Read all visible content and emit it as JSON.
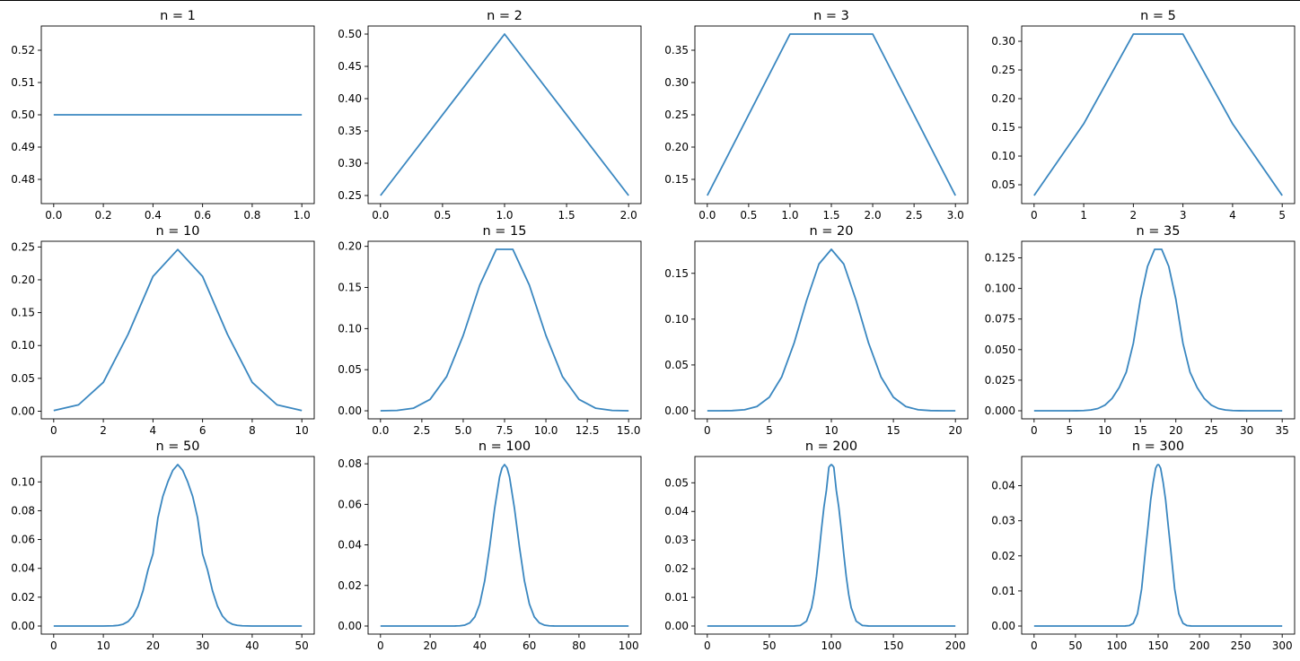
{
  "figure_title": "",
  "chart_data": [
    {
      "type": "line",
      "title": "n = 1",
      "x": [
        0,
        1
      ],
      "y": [
        0.5,
        0.5
      ],
      "xlim": [
        -0.05,
        1.05
      ],
      "ylim": [
        0.4725,
        0.5275
      ],
      "xticks": [
        0,
        0.2,
        0.4,
        0.6,
        0.8,
        1
      ],
      "xtick_labels": [
        "0.0",
        "0.2",
        "0.4",
        "0.6",
        "0.8",
        "1.0"
      ],
      "yticks": [
        0.48,
        0.49,
        0.5,
        0.51,
        0.52
      ],
      "ytick_labels": [
        "0.48",
        "0.49",
        "0.50",
        "0.51",
        "0.52"
      ]
    },
    {
      "type": "line",
      "title": "n = 2",
      "x": [
        0,
        1,
        2
      ],
      "y": [
        0.25,
        0.5,
        0.25
      ],
      "xlim": [
        -0.1,
        2.1
      ],
      "ylim": [
        0.2375,
        0.5125
      ],
      "xticks": [
        0,
        0.5,
        1,
        1.5,
        2
      ],
      "xtick_labels": [
        "0.0",
        "0.5",
        "1.0",
        "1.5",
        "2.0"
      ],
      "yticks": [
        0.25,
        0.3,
        0.35,
        0.4,
        0.45,
        0.5
      ],
      "ytick_labels": [
        "0.25",
        "0.30",
        "0.35",
        "0.40",
        "0.45",
        "0.50"
      ]
    },
    {
      "type": "line",
      "title": "n = 3",
      "x": [
        0,
        1,
        2,
        3
      ],
      "y": [
        0.125,
        0.375,
        0.375,
        0.125
      ],
      "xlim": [
        -0.15,
        3.15
      ],
      "ylim": [
        0.1125,
        0.3875
      ],
      "xticks": [
        0,
        0.5,
        1,
        1.5,
        2,
        2.5,
        3
      ],
      "xtick_labels": [
        "0.0",
        "0.5",
        "1.0",
        "1.5",
        "2.0",
        "2.5",
        "3.0"
      ],
      "yticks": [
        0.15,
        0.2,
        0.25,
        0.3,
        0.35
      ],
      "ytick_labels": [
        "0.15",
        "0.20",
        "0.25",
        "0.30",
        "0.35"
      ]
    },
    {
      "type": "line",
      "title": "n = 5",
      "x": [
        0,
        1,
        2,
        3,
        4,
        5
      ],
      "y": [
        0.03125,
        0.15625,
        0.3125,
        0.3125,
        0.15625,
        0.03125
      ],
      "xlim": [
        -0.25,
        5.25
      ],
      "ylim": [
        0.0172,
        0.3266
      ],
      "xticks": [
        0,
        1,
        2,
        3,
        4,
        5
      ],
      "xtick_labels": [
        "0",
        "1",
        "2",
        "3",
        "4",
        "5"
      ],
      "yticks": [
        0.05,
        0.1,
        0.15,
        0.2,
        0.25,
        0.3
      ],
      "ytick_labels": [
        "0.05",
        "0.10",
        "0.15",
        "0.20",
        "0.25",
        "0.30"
      ]
    },
    {
      "type": "line",
      "title": "n = 10",
      "x": [
        0,
        1,
        2,
        3,
        4,
        5,
        6,
        7,
        8,
        9,
        10
      ],
      "y": [
        0.000977,
        0.009766,
        0.043945,
        0.117188,
        0.205078,
        0.246094,
        0.205078,
        0.117188,
        0.043945,
        0.009766,
        0.000977
      ],
      "xlim": [
        -0.5,
        10.5
      ],
      "ylim": [
        -0.01158,
        0.25865
      ],
      "xticks": [
        0,
        2,
        4,
        6,
        8,
        10
      ],
      "xtick_labels": [
        "0",
        "2",
        "4",
        "6",
        "8",
        "10"
      ],
      "yticks": [
        0,
        0.05,
        0.1,
        0.15,
        0.2,
        0.25
      ],
      "ytick_labels": [
        "0.00",
        "0.05",
        "0.10",
        "0.15",
        "0.20",
        "0.25"
      ]
    },
    {
      "type": "line",
      "title": "n = 15",
      "x": [
        0,
        1,
        2,
        3,
        4,
        5,
        6,
        7,
        8,
        9,
        10,
        11,
        12,
        13,
        14,
        15
      ],
      "y": [
        3.05e-05,
        0.000458,
        0.003204,
        0.013885,
        0.041656,
        0.091644,
        0.15274,
        0.196381,
        0.196381,
        0.15274,
        0.091644,
        0.041656,
        0.013885,
        0.003204,
        0.000458,
        3.05e-05
      ],
      "xlim": [
        -0.75,
        15.75
      ],
      "ylim": [
        -0.00979,
        0.2062
      ],
      "xticks": [
        0,
        2.5,
        5,
        7.5,
        10,
        12.5,
        15
      ],
      "xtick_labels": [
        "0.0",
        "2.5",
        "5.0",
        "7.5",
        "10.0",
        "12.5",
        "15.0"
      ],
      "yticks": [
        0,
        0.05,
        0.1,
        0.15,
        0.2
      ],
      "ytick_labels": [
        "0.00",
        "0.05",
        "0.10",
        "0.15",
        "0.20"
      ]
    },
    {
      "type": "line",
      "title": "n = 20",
      "x": [
        0,
        1,
        2,
        3,
        4,
        5,
        6,
        7,
        8,
        9,
        10,
        11,
        12,
        13,
        14,
        15,
        16,
        17,
        18,
        19,
        20
      ],
      "y": [
        9.5e-07,
        1.9e-05,
        0.000181,
        0.001087,
        0.004621,
        0.014786,
        0.036964,
        0.073929,
        0.120134,
        0.160179,
        0.176197,
        0.160179,
        0.120134,
        0.073929,
        0.036964,
        0.014786,
        0.004621,
        0.001087,
        0.000181,
        1.9e-05,
        9.5e-07
      ],
      "xlim": [
        -1,
        21
      ],
      "ylim": [
        -0.00881,
        0.185
      ],
      "xticks": [
        0,
        5,
        10,
        15,
        20
      ],
      "xtick_labels": [
        "0",
        "5",
        "10",
        "15",
        "20"
      ],
      "yticks": [
        0,
        0.05,
        0.1,
        0.15
      ],
      "ytick_labels": [
        "0.00",
        "0.05",
        "0.10",
        "0.15"
      ]
    },
    {
      "type": "line",
      "title": "n = 35",
      "x": [
        0,
        1,
        2,
        3,
        4,
        5,
        6,
        7,
        8,
        9,
        10,
        11,
        12,
        13,
        14,
        15,
        16,
        17,
        18,
        19,
        20,
        21,
        22,
        23,
        24,
        25,
        26,
        27,
        28,
        29,
        30,
        31,
        32,
        33,
        34,
        35
      ],
      "y": [
        0,
        0,
        0,
        2e-07,
        1.5e-06,
        1e-05,
        5.2e-05,
        0.000194,
        0.00066,
        0.001834,
        0.004612,
        0.010063,
        0.019,
        0.031523,
        0.055134,
        0.09112,
        0.118,
        0.132,
        0.132,
        0.118,
        0.09112,
        0.055134,
        0.031523,
        0.019,
        0.010063,
        0.004612,
        0.001834,
        0.00066,
        0.000194,
        5.2e-05,
        1e-05,
        1.5e-06,
        2e-07,
        0,
        0,
        0
      ],
      "xlim": [
        -1.75,
        36.75
      ],
      "ylim": [
        -0.0066,
        0.1386
      ],
      "xticks": [
        0,
        5,
        10,
        15,
        20,
        25,
        30,
        35
      ],
      "xtick_labels": [
        "0",
        "5",
        "10",
        "15",
        "20",
        "25",
        "30",
        "35"
      ],
      "yticks": [
        0,
        0.025,
        0.05,
        0.075,
        0.1,
        0.125
      ],
      "ytick_labels": [
        "0.000",
        "0.025",
        "0.050",
        "0.075",
        "0.100",
        "0.125"
      ]
    },
    {
      "type": "line",
      "title": "n = 50",
      "x": [
        0,
        2,
        4,
        6,
        8,
        10,
        12,
        13,
        14,
        15,
        16,
        17,
        18,
        19,
        20,
        21,
        22,
        23,
        24,
        25,
        26,
        27,
        28,
        29,
        30,
        31,
        32,
        33,
        34,
        35,
        36,
        37,
        38,
        40,
        42,
        44,
        46,
        48,
        50
      ],
      "y": [
        0,
        0,
        0,
        0,
        2e-07,
        9e-06,
        0.000153,
        0.000468,
        0.001275,
        0.003148,
        0.00696,
        0.013793,
        0.024461,
        0.038897,
        0.05,
        0.075,
        0.09,
        0.1,
        0.108,
        0.112,
        0.108,
        0.1,
        0.09,
        0.075,
        0.05,
        0.038897,
        0.024461,
        0.013793,
        0.00696,
        0.003148,
        0.001275,
        0.000468,
        0.000153,
        9e-06,
        2e-07,
        0,
        0,
        0,
        0
      ],
      "xlim": [
        -2.5,
        52.5
      ],
      "ylim": [
        -0.0056,
        0.1176
      ],
      "xticks": [
        0,
        10,
        20,
        30,
        40,
        50
      ],
      "xtick_labels": [
        "0",
        "10",
        "20",
        "30",
        "40",
        "50"
      ],
      "yticks": [
        0,
        0.02,
        0.04,
        0.06,
        0.08,
        0.1
      ],
      "ytick_labels": [
        "0.00",
        "0.02",
        "0.04",
        "0.06",
        "0.08",
        "0.10"
      ]
    },
    {
      "type": "line",
      "title": "n = 100",
      "x": [
        0,
        10,
        20,
        30,
        32,
        34,
        36,
        38,
        40,
        42,
        44,
        46,
        48,
        49,
        50,
        51,
        52,
        54,
        56,
        58,
        60,
        62,
        64,
        66,
        68,
        70,
        80,
        90,
        100
      ],
      "y": [
        0,
        0,
        0,
        2.3e-05,
        0.000112,
        0.000458,
        0.001559,
        0.00447,
        0.010844,
        0.022292,
        0.039006,
        0.057958,
        0.073527,
        0.078,
        0.0796,
        0.078,
        0.073527,
        0.057958,
        0.039006,
        0.022292,
        0.010844,
        0.00447,
        0.001559,
        0.000458,
        0.000112,
        2.3e-05,
        0,
        0,
        0
      ],
      "xlim": [
        -5,
        105
      ],
      "ylim": [
        -0.00398,
        0.08358
      ],
      "xticks": [
        0,
        20,
        40,
        60,
        80,
        100
      ],
      "xtick_labels": [
        "0",
        "20",
        "40",
        "60",
        "80",
        "100"
      ],
      "yticks": [
        0,
        0.02,
        0.04,
        0.06,
        0.08
      ],
      "ytick_labels": [
        "0.00",
        "0.02",
        "0.04",
        "0.06",
        "0.08"
      ]
    },
    {
      "type": "line",
      "title": "n = 200",
      "x": [
        0,
        20,
        40,
        60,
        70,
        75,
        80,
        84,
        86,
        88,
        90,
        92,
        94,
        96,
        98,
        99,
        100,
        101,
        102,
        104,
        106,
        108,
        110,
        112,
        114,
        116,
        120,
        125,
        130,
        140,
        160,
        180,
        200
      ],
      "y": [
        0,
        0,
        0,
        0,
        1.2e-05,
        0.000186,
        0.001697,
        0.006384,
        0.010958,
        0.017315,
        0.02518,
        0.03369,
        0.041451,
        0.047347,
        0.05541,
        0.056,
        0.05635,
        0.056,
        0.05541,
        0.047347,
        0.041451,
        0.03369,
        0.02518,
        0.017315,
        0.010958,
        0.006384,
        0.001697,
        0.000186,
        1.2e-05,
        0,
        0,
        0,
        0
      ],
      "xlim": [
        -10,
        210
      ],
      "ylim": [
        -0.00282,
        0.05917
      ],
      "xticks": [
        0,
        50,
        100,
        150,
        200
      ],
      "xtick_labels": [
        "0",
        "50",
        "100",
        "150",
        "200"
      ],
      "yticks": [
        0,
        0.01,
        0.02,
        0.03,
        0.04,
        0.05
      ],
      "ytick_labels": [
        "0.00",
        "0.01",
        "0.02",
        "0.03",
        "0.04",
        "0.05"
      ]
    },
    {
      "type": "line",
      "title": "n = 300",
      "x": [
        0,
        30,
        60,
        90,
        110,
        115,
        120,
        125,
        130,
        135,
        138,
        141,
        144,
        147,
        149,
        150,
        151,
        153,
        156,
        159,
        162,
        165,
        170,
        175,
        180,
        185,
        190,
        210,
        240,
        270,
        300
      ],
      "y": [
        0,
        0,
        0,
        0,
        1.3e-05,
        0.00012,
        0.000789,
        0.003493,
        0.010544,
        0.022293,
        0.029,
        0.036,
        0.041,
        0.045,
        0.0459,
        0.04603,
        0.0459,
        0.045,
        0.041,
        0.036,
        0.029,
        0.022293,
        0.010544,
        0.003493,
        0.000789,
        0.00012,
        1.3e-05,
        0,
        0,
        0,
        0
      ],
      "xlim": [
        -15,
        315
      ],
      "ylim": [
        -0.0023,
        0.04833
      ],
      "xticks": [
        0,
        50,
        100,
        150,
        200,
        250,
        300
      ],
      "xtick_labels": [
        "0",
        "50",
        "100",
        "150",
        "200",
        "250",
        "300"
      ],
      "yticks": [
        0,
        0.01,
        0.02,
        0.03,
        0.04
      ],
      "ytick_labels": [
        "0.00",
        "0.01",
        "0.02",
        "0.03",
        "0.04"
      ]
    }
  ]
}
